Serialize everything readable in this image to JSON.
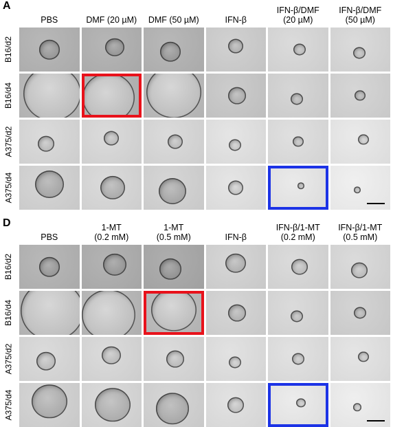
{
  "panels": [
    {
      "letter": "A",
      "columns": [
        [
          "PBS",
          ""
        ],
        [
          "DMF (20 µM)",
          ""
        ],
        [
          "DMF (50 µM)",
          ""
        ],
        [
          "IFN-β",
          ""
        ],
        [
          "IFN-β/DMF",
          "(20 µM)"
        ],
        [
          "IFN-β/DMF",
          "(50 µM)"
        ]
      ],
      "rows": [
        "B16/d2",
        "B16/d4",
        "A375/d2",
        "A375/d4"
      ],
      "highlight_red": [
        1,
        1
      ],
      "highlight_blue": [
        3,
        4
      ],
      "colors": {
        "red": "#e8121b",
        "blue": "#1c33e6"
      }
    },
    {
      "letter": "D",
      "columns": [
        [
          "PBS",
          ""
        ],
        [
          "1-MT",
          "(0.2 mM)"
        ],
        [
          "1-MT",
          "(0.5 mM)"
        ],
        [
          "IFN-β",
          ""
        ],
        [
          "IFN-β/1-MT",
          "(0.2 mM)"
        ],
        [
          "IFN-β/1-MT",
          "(0.5 mM)"
        ]
      ],
      "rows": [
        "B16/d2",
        "B16/d4",
        "A375/d2",
        "A375/d4"
      ],
      "highlight_red": [
        1,
        2
      ],
      "highlight_blue": [
        3,
        4
      ],
      "colors": {
        "red": "#e8121b",
        "blue": "#1c33e6"
      }
    }
  ]
}
